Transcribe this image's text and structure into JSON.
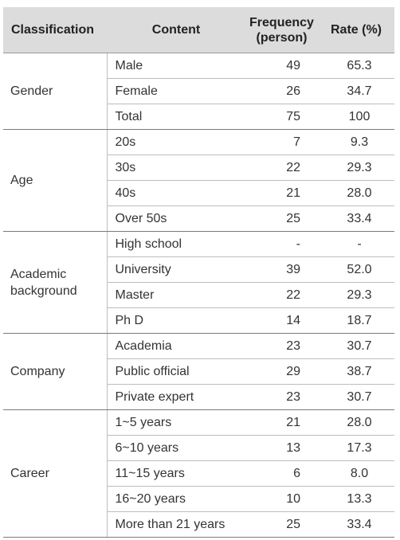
{
  "table": {
    "headers": {
      "classification": "Classification",
      "content": "Content",
      "frequency": "Frequency\n(person)",
      "rate": "Rate (%)"
    },
    "groups": [
      {
        "label": "Gender",
        "rows": [
          {
            "content": "Male",
            "frequency": "49",
            "rate": "65.3"
          },
          {
            "content": "Female",
            "frequency": "26",
            "rate": "34.7"
          },
          {
            "content": "Total",
            "frequency": "75",
            "rate": "100"
          }
        ]
      },
      {
        "label": "Age",
        "rows": [
          {
            "content": "20s",
            "frequency": "7",
            "rate": "9.3"
          },
          {
            "content": "30s",
            "frequency": "22",
            "rate": "29.3"
          },
          {
            "content": "40s",
            "frequency": "21",
            "rate": "28.0"
          },
          {
            "content": "Over 50s",
            "frequency": "25",
            "rate": "33.4"
          }
        ]
      },
      {
        "label": "Academic\nbackground",
        "rows": [
          {
            "content": "High school",
            "frequency": "-",
            "rate": "-"
          },
          {
            "content": "University",
            "frequency": "39",
            "rate": "52.0"
          },
          {
            "content": "Master",
            "frequency": "22",
            "rate": "29.3"
          },
          {
            "content": "Ph D",
            "frequency": "14",
            "rate": "18.7"
          }
        ]
      },
      {
        "label": "Company",
        "rows": [
          {
            "content": "Academia",
            "frequency": "23",
            "rate": "30.7"
          },
          {
            "content": "Public official",
            "frequency": "29",
            "rate": "38.7"
          },
          {
            "content": "Private expert",
            "frequency": "23",
            "rate": "30.7"
          }
        ]
      },
      {
        "label": "Career",
        "rows": [
          {
            "content": "1~5 years",
            "frequency": "21",
            "rate": "28.0"
          },
          {
            "content": "6~10 years",
            "frequency": "13",
            "rate": "17.3"
          },
          {
            "content": "11~15 years",
            "frequency": "6",
            "rate": "8.0"
          },
          {
            "content": "16~20 years",
            "frequency": "10",
            "rate": "13.3"
          },
          {
            "content": "More than 21 years",
            "frequency": "25",
            "rate": "33.4"
          }
        ]
      }
    ]
  }
}
